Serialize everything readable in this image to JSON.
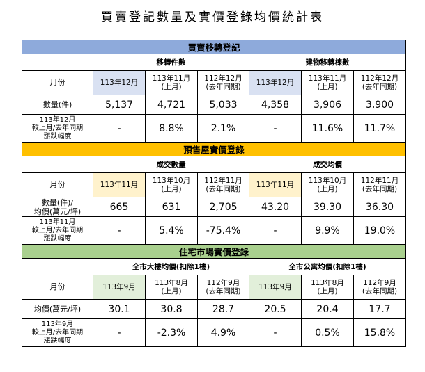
{
  "title": "買賣登記數量及實價登錄均價統計表",
  "sections": [
    {
      "title": "買賣移轉登記",
      "groups": [
        "移轉件數",
        "建物移轉棟數"
      ],
      "headers": {
        "label": "月份",
        "cols": [
          [
            "113年12月",
            ""
          ],
          [
            "113年11月",
            "(上月)"
          ],
          [
            "112年12月",
            "(去年同期)"
          ],
          [
            "113年12月",
            ""
          ],
          [
            "113年11月",
            "(上月)"
          ],
          [
            "112年12月",
            "(去年同期)"
          ]
        ]
      },
      "value_row": {
        "label": [
          "數量(件)",
          ""
        ],
        "values": [
          "5,137",
          "4,721",
          "5,033",
          "4,358",
          "3,906",
          "3,900"
        ]
      },
      "change_row": {
        "label": [
          "113年12月",
          "較上月/去年同期",
          "漲跌幅度"
        ],
        "values": [
          "-",
          "8.8%",
          "2.1%",
          "-",
          "11.6%",
          "11.7%"
        ]
      }
    },
    {
      "title": "預售屋實價登錄",
      "groups": [
        "成交數量",
        "成交均價"
      ],
      "headers": {
        "label": "月份",
        "cols": [
          [
            "113年11月",
            ""
          ],
          [
            "113年10月",
            "(上月)"
          ],
          [
            "112年11月",
            "(去年同期)"
          ],
          [
            "113年11月",
            ""
          ],
          [
            "113年10月",
            "(上月)"
          ],
          [
            "112年11月",
            "(去年同期)"
          ]
        ]
      },
      "value_row": {
        "label": [
          "數量(件)/",
          "均價(萬元/坪)"
        ],
        "values": [
          "665",
          "631",
          "2,705",
          "43.20",
          "39.30",
          "36.30"
        ]
      },
      "change_row": {
        "label": [
          "113年11月",
          "較上月/去年同期",
          "漲跌幅度"
        ],
        "values": [
          "-",
          "5.4%",
          "-75.4%",
          "-",
          "9.9%",
          "19.0%"
        ]
      }
    },
    {
      "title": "住宅市場實價登錄",
      "groups": [
        "全市大樓均價(扣除1樓)",
        "全市公寓均價(扣除1樓)"
      ],
      "headers": {
        "label": "月份",
        "cols": [
          [
            "113年9月",
            ""
          ],
          [
            "113年8月",
            "(上月)"
          ],
          [
            "112年9月",
            "(去年同期)"
          ],
          [
            "113年9月",
            ""
          ],
          [
            "113年8月",
            "(上月)"
          ],
          [
            "112年9月",
            "(去年同期)"
          ]
        ]
      },
      "value_row": {
        "label": [
          "均價(萬元/坪)",
          ""
        ],
        "values": [
          "30.1",
          "30.8",
          "28.7",
          "20.5",
          "20.4",
          "17.7"
        ]
      },
      "change_row": {
        "label": [
          "113年9月",
          "較上月/去年同期",
          "漲跌幅度"
        ],
        "values": [
          "-",
          "-2.3%",
          "4.9%",
          "-",
          "0.5%",
          "15.8%"
        ]
      }
    }
  ],
  "colors": {
    "section_1": "#8eaadb",
    "section_2": "#ffc000",
    "section_3": "#a9d08e",
    "highlight_1": "#d9e1f2",
    "highlight_2": "#fff2cc",
    "highlight_3": "#e2efda"
  }
}
